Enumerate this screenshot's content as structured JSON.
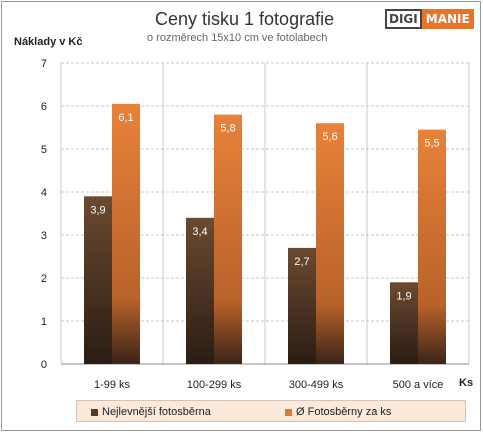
{
  "chart_data": {
    "type": "bar",
    "title": "Ceny tisku 1 fotografie",
    "subtitle": "o rozměrech 15x10 cm ve fotolabech",
    "ylabel": "Náklady v Kč",
    "xlabel": "Ks",
    "categories": [
      "1-99 ks",
      "100-299 ks",
      "300-499 ks",
      "500 a více"
    ],
    "ylim": [
      0,
      7
    ],
    "yticks": [
      0,
      1,
      2,
      3,
      4,
      5,
      6,
      7
    ],
    "grid": true,
    "legend_position": "bottom",
    "series": [
      {
        "name": "Nejlevnější fotosběrna",
        "values": [
          3.9,
          3.4,
          2.7,
          1.9
        ],
        "labels": [
          "3,9",
          "3,4",
          "2,7",
          "1,9"
        ],
        "color": "#5a3a22"
      },
      {
        "name": "Ø Fotosběrny za ks",
        "values": [
          6.05,
          5.8,
          5.6,
          5.45
        ],
        "labels": [
          "6,1",
          "5,8",
          "5,6",
          "5,5"
        ],
        "color": "#e07a30"
      }
    ]
  },
  "logo": {
    "left": "DIGI",
    "right": "MANIE"
  }
}
